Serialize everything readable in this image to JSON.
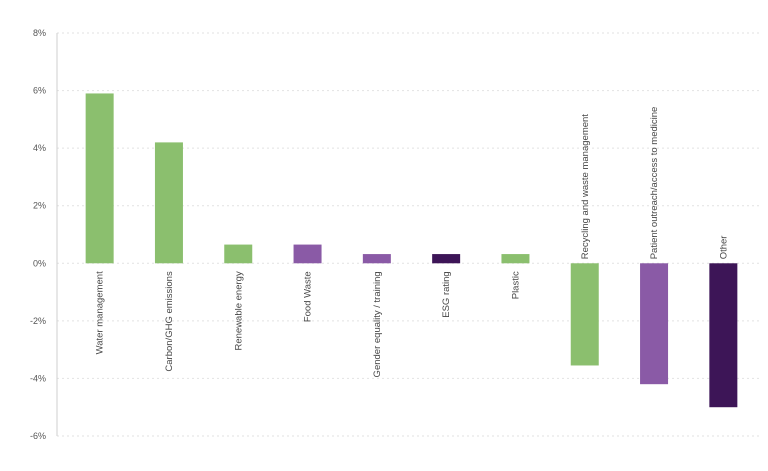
{
  "chart_data": {
    "type": "bar",
    "title": "",
    "xlabel": "",
    "ylabel": "",
    "ylim": [
      -6,
      8
    ],
    "yticks": [
      8,
      6,
      4,
      2,
      0,
      -2,
      -4,
      -6
    ],
    "ytick_labels": [
      "8%",
      "6%",
      "4%",
      "2%",
      "0%",
      "-2%",
      "-4%",
      "-6%"
    ],
    "grid": true,
    "categories": [
      "Water management",
      "Carbon/GHG emissions",
      "Renewable energy",
      "Food Waste",
      "Gender equality / training",
      "ESG rating",
      "Plastic",
      "Recycling and waste management",
      "Patient outreach/access to medicine",
      "Other"
    ],
    "values": [
      5.9,
      4.2,
      0.65,
      0.65,
      0.32,
      0.32,
      0.32,
      -3.55,
      -4.2,
      -5.0
    ],
    "colors": [
      "#8bbf6e",
      "#8bbf6e",
      "#8bbf6e",
      "#8a5aa6",
      "#8a5aa6",
      "#3d1557",
      "#8bbf6e",
      "#8bbf6e",
      "#8a5aa6",
      "#3d1557"
    ]
  }
}
